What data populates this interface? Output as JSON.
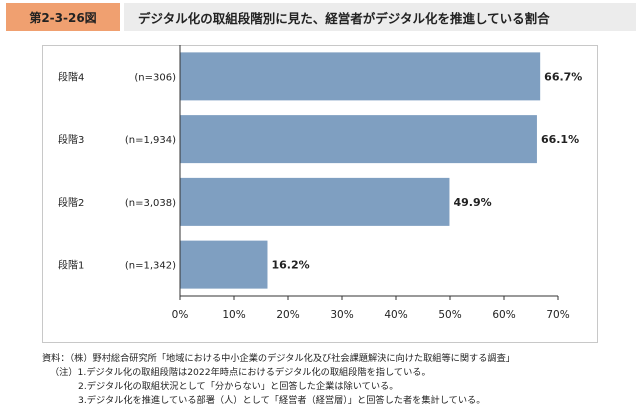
{
  "header": {
    "figure_number": "第2-3-26図",
    "title": "デジタル化の取組段階別に見た、経営者がデジタル化を推進している割合"
  },
  "chart_data": {
    "type": "bar",
    "orientation": "horizontal",
    "title": "デジタル化の取組段階別に見た、経営者がデジタル化を推進している割合",
    "categories": [
      "段階4",
      "段階3",
      "段階2",
      "段階1"
    ],
    "sample_sizes": [
      "(n=306)",
      "(n=1,934)",
      "(n=3,038)",
      "(n=1,342)"
    ],
    "values": [
      66.7,
      66.1,
      49.9,
      16.2
    ],
    "value_labels": [
      "66.7%",
      "66.1%",
      "49.9%",
      "16.2%"
    ],
    "xlim": [
      0,
      70
    ],
    "xticks": [
      "0%",
      "10%",
      "20%",
      "30%",
      "40%",
      "50%",
      "60%",
      "70%"
    ],
    "bar_color": "#7f9fc1",
    "grid": false,
    "legend": "none"
  },
  "notes": {
    "source": "資料：（株）野村総合研究所「地域における中小企業のデジタル化及び社会課題解決に向けた取組等に関する調査」",
    "note1": "（注）1.デジタル化の取組段階は2022年時点におけるデジタル化の取組段階を指している。",
    "note2": "2.デジタル化の取組状況として「分からない」と回答した企業は除いている。",
    "note3": "3.デジタル化を推進している部署（人）として「経営者（経営層）」と回答した者を集計している。"
  }
}
